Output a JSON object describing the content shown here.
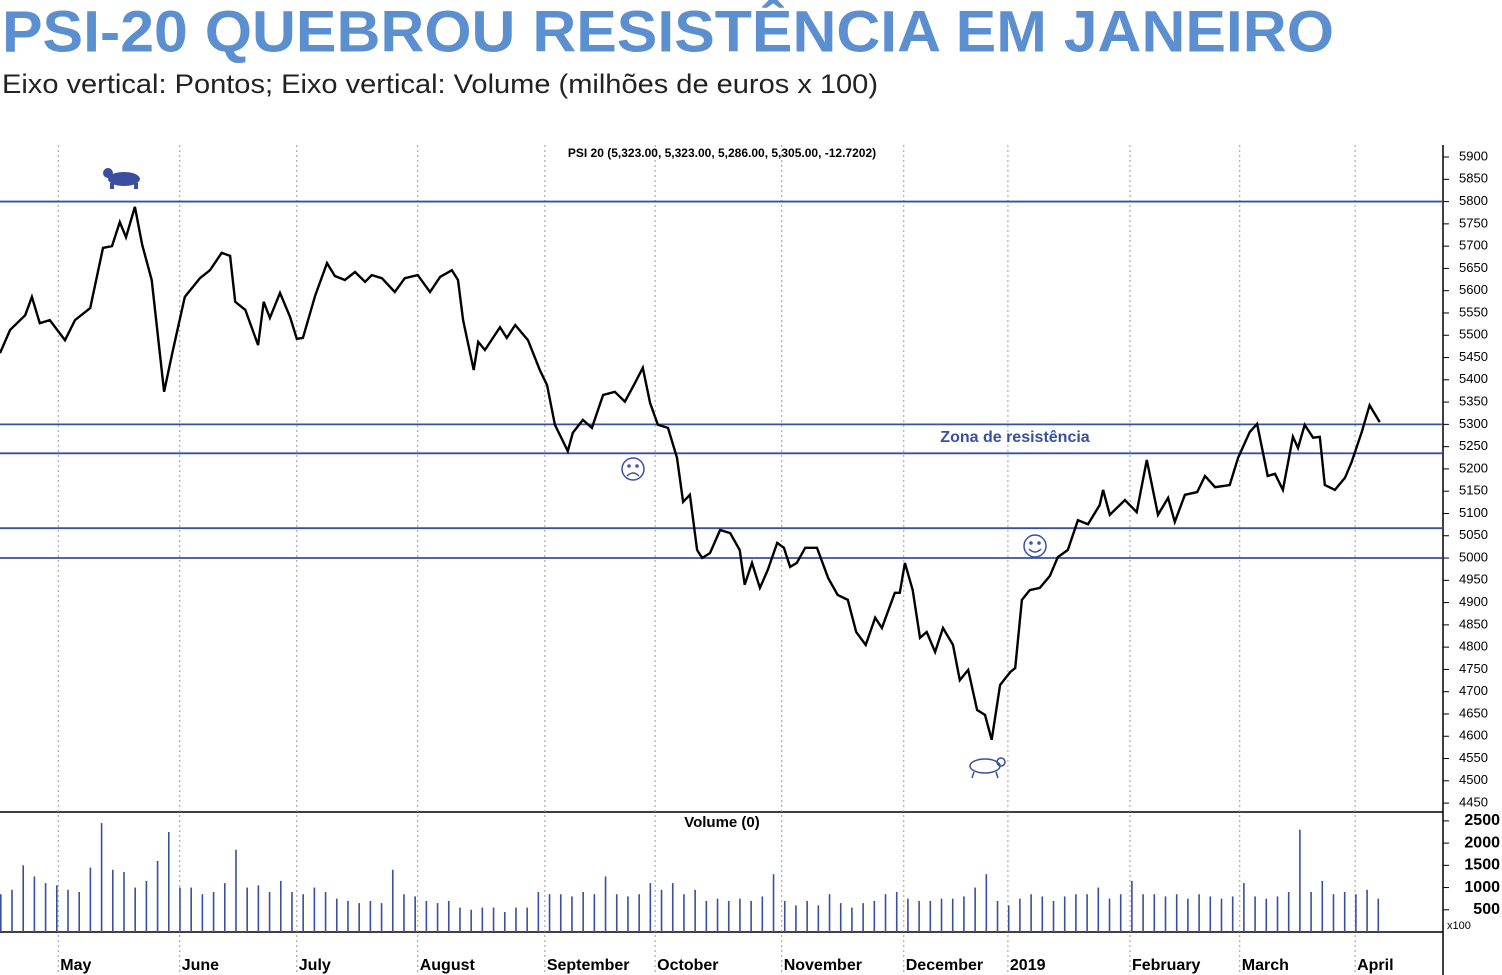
{
  "chart_data": [
    {
      "type": "line",
      "title": "PSI-20 QUEBROU RESISTÊNCIA EM JANEIRO",
      "subtitle": "Eixo vertical: Pontos; Eixo vertical: Volume (milhões de euros x 100)",
      "annotation": "Zona de resistência",
      "xlim": [
        0,
        257.7
      ],
      "ylim": [
        4430,
        5927
      ],
      "yticks": [
        4450,
        4500,
        4550,
        4600,
        4650,
        4700,
        4750,
        4800,
        4850,
        4900,
        4950,
        5000,
        5050,
        5100,
        5150,
        5200,
        5250,
        5300,
        5350,
        5400,
        5450,
        5500,
        5550,
        5600,
        5650,
        5700,
        5750,
        5800,
        5850,
        5900
      ],
      "reference_lines": [
        5800,
        5300,
        5235,
        5067,
        5000
      ],
      "reference_color": "#3a4fa0",
      "x": [
        0,
        1.8,
        4.5,
        5.7,
        7.1,
        8.9,
        11.6,
        13.4,
        16.1,
        18.4,
        20,
        21.4,
        22.5,
        24.1,
        25.4,
        27.1,
        29.3,
        30.7,
        33,
        35.7,
        37.5,
        39.6,
        41.1,
        42,
        43.8,
        46.1,
        47.1,
        48.2,
        50,
        51.8,
        53,
        54.1,
        56.3,
        58.4,
        59.8,
        61.6,
        63.4,
        65.2,
        66.4,
        68.2,
        70.5,
        72.3,
        74.6,
        76.8,
        78.6,
        80.7,
        81.8,
        82.7,
        84.6,
        85.4,
        86.6,
        89.3,
        90.5,
        92,
        94.3,
        96.4,
        97.7,
        99.1,
        101.4,
        102.3,
        104.1,
        105.7,
        107.7,
        109.8,
        111.6,
        113.4,
        114.8,
        116.1,
        117.5,
        119.3,
        120.9,
        122,
        123.2,
        124.5,
        125.4,
        126.8,
        128.6,
        130.4,
        132.1,
        133,
        134.3,
        135.7,
        137.1,
        138.8,
        140,
        141.1,
        142.3,
        143.8,
        145.9,
        147.9,
        149.6,
        151.4,
        152.9,
        154.6,
        156.3,
        157.5,
        159.8,
        160.7,
        161.6,
        163,
        164.3,
        165.5,
        167,
        168.4,
        170.2,
        171.4,
        172.9,
        174.5,
        175.9,
        177.1,
        178.6,
        180.4,
        181.3,
        182.5,
        183.9,
        185.7,
        187.5,
        188.9,
        190.7,
        192.5,
        194.3,
        196.4,
        197,
        198.2,
        200.9,
        203,
        204.8,
        206.8,
        208.6,
        209.8,
        211.6,
        213.8,
        215.2,
        217,
        219.6,
        221.1,
        223.2,
        224.5,
        226.4,
        227.7,
        229.1,
        230.9,
        231.8,
        233,
        234.5,
        235.7,
        236.6,
        238.4,
        240.2,
        241.4,
        243.2,
        244.6,
        246.4
      ],
      "series": [
        {
          "name": "PSI 20 (5,323.00, 5,323.00, 5,286.00, 5,305.00, -12.7202)",
          "color": "#000000",
          "values": [
            5460,
            5512,
            5545,
            5586,
            5527,
            5534,
            5489,
            5534,
            5561,
            5696,
            5700,
            5754,
            5720,
            5788,
            5703,
            5624,
            5373,
            5456,
            5586,
            5628,
            5646,
            5685,
            5678,
            5575,
            5557,
            5478,
            5575,
            5539,
            5595,
            5541,
            5492,
            5494,
            5590,
            5662,
            5633,
            5624,
            5642,
            5620,
            5635,
            5628,
            5597,
            5628,
            5635,
            5597,
            5631,
            5646,
            5624,
            5534,
            5422,
            5485,
            5467,
            5518,
            5494,
            5523,
            5489,
            5422,
            5388,
            5299,
            5240,
            5281,
            5310,
            5292,
            5366,
            5373,
            5351,
            5393,
            5427,
            5348,
            5299,
            5292,
            5225,
            5126,
            5142,
            5018,
            5000,
            5011,
            5063,
            5056,
            5018,
            4940,
            4989,
            4933,
            4973,
            5034,
            5023,
            4980,
            4989,
            5023,
            5023,
            4955,
            4917,
            4906,
            4834,
            4805,
            4866,
            4843,
            4922,
            4922,
            4989,
            4928,
            4821,
            4834,
            4789,
            4843,
            4805,
            4726,
            4749,
            4659,
            4648,
            4592,
            4715,
            4744,
            4753,
            4906,
            4928,
            4933,
            4960,
            5002,
            5018,
            5085,
            5076,
            5119,
            5153,
            5097,
            5130,
            5103,
            5220,
            5097,
            5135,
            5081,
            5142,
            5148,
            5184,
            5159,
            5164,
            5225,
            5283,
            5301,
            5184,
            5189,
            5153,
            5272,
            5247,
            5299,
            5270,
            5272,
            5164,
            5153,
            5180,
            5216,
            5283,
            5343,
            5305
          ]
        }
      ]
    },
    {
      "type": "bar",
      "xlim": [
        0,
        257.7
      ],
      "ylim": [
        0,
        2700
      ],
      "yticks": [
        500,
        1000,
        1500,
        2000,
        2500
      ],
      "y_unit_label": "x100",
      "xticks": [
        {
          "value": 10.4,
          "label": "May"
        },
        {
          "value": 32.1,
          "label": "June"
        },
        {
          "value": 53,
          "label": "July"
        },
        {
          "value": 74.6,
          "label": "August"
        },
        {
          "value": 97.3,
          "label": "September"
        },
        {
          "value": 117,
          "label": "October"
        },
        {
          "value": 139.6,
          "label": "November"
        },
        {
          "value": 161.4,
          "label": "December"
        },
        {
          "value": 180,
          "label": "2019"
        },
        {
          "value": 201.8,
          "label": "February"
        },
        {
          "value": 221.4,
          "label": "March"
        },
        {
          "value": 242,
          "label": "April"
        }
      ],
      "x": [
        0,
        2,
        4,
        6,
        8,
        10,
        12,
        14,
        16,
        18,
        20,
        22,
        24,
        26,
        28,
        30,
        32,
        34,
        36,
        38,
        40,
        42,
        44,
        46,
        48,
        50,
        52,
        54,
        56,
        58,
        60,
        62,
        64,
        66,
        68,
        70,
        72,
        74,
        76,
        78,
        80,
        82,
        84,
        86,
        88,
        90,
        92,
        94,
        96,
        98,
        100,
        102,
        104,
        106,
        108,
        110,
        112,
        114,
        116,
        118,
        120,
        122,
        124,
        126,
        128,
        130,
        132,
        134,
        136,
        138,
        140,
        142,
        144,
        146,
        148,
        150,
        152,
        154,
        156,
        158,
        160,
        162,
        164,
        166,
        168,
        170,
        172,
        174,
        176,
        178,
        180,
        182,
        184,
        186,
        188,
        190,
        192,
        194,
        196,
        198,
        200,
        202,
        204,
        206,
        208,
        210,
        212,
        214,
        216,
        218,
        220,
        222,
        224,
        226,
        228,
        230,
        232,
        234,
        236,
        238,
        240,
        242,
        244,
        246
      ],
      "series": [
        {
          "name": "Volume (0)",
          "color": "#3a4fa0",
          "values": [
            850,
            950,
            1500,
            1250,
            1100,
            1050,
            950,
            900,
            1450,
            2450,
            1400,
            1350,
            1000,
            1150,
            1600,
            2250,
            1000,
            1000,
            850,
            900,
            1100,
            1850,
            1000,
            1050,
            900,
            1150,
            900,
            850,
            1000,
            900,
            750,
            700,
            650,
            700,
            650,
            1400,
            850,
            800,
            700,
            650,
            700,
            550,
            500,
            550,
            550,
            450,
            550,
            550,
            900,
            850,
            850,
            800,
            900,
            850,
            1250,
            850,
            800,
            850,
            1100,
            950,
            1100,
            850,
            950,
            700,
            750,
            700,
            750,
            700,
            800,
            1300,
            700,
            600,
            700,
            600,
            850,
            650,
            550,
            650,
            700,
            850,
            900,
            750,
            700,
            700,
            750,
            750,
            800,
            1000,
            1300,
            700,
            600,
            750,
            850,
            800,
            700,
            800,
            850,
            850,
            1000,
            750,
            850,
            1150,
            850,
            850,
            800,
            850,
            750,
            850,
            800,
            750,
            800,
            1100,
            800,
            750,
            800,
            900,
            2300,
            900,
            1150,
            850,
            900,
            850,
            950,
            750
          ]
        }
      ]
    }
  ]
}
